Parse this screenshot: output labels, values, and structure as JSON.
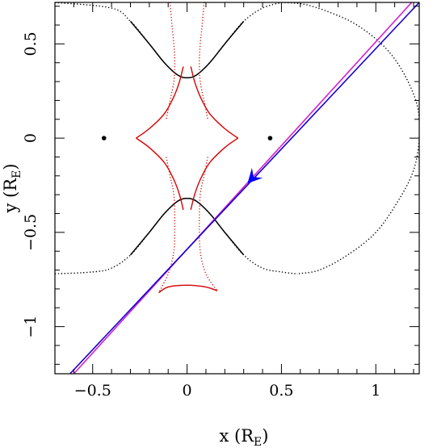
{
  "chart_data": {
    "type": "line",
    "xlabel": {
      "main": "x (R",
      "sub": "E",
      "close": ")"
    },
    "ylabel": {
      "main": "y (R",
      "sub": "E",
      "close": ")"
    },
    "xlim": [
      -0.7,
      1.23
    ],
    "ylim": [
      -1.25,
      0.72
    ],
    "x_ticks": [
      {
        "value": -0.5,
        "label": "−0.5"
      },
      {
        "value": 0,
        "label": "0"
      },
      {
        "value": 0.5,
        "label": "0.5"
      },
      {
        "value": 1,
        "label": "1"
      }
    ],
    "y_ticks": [
      {
        "value": 0.5,
        "label": "0.5"
      },
      {
        "value": 0,
        "label": "0"
      },
      {
        "value": -0.5,
        "label": "−0.5"
      },
      {
        "value": -1,
        "label": "−1"
      }
    ],
    "x_minor_step": 0.1,
    "y_minor_step": 0.1,
    "lens_points": [
      [
        -0.44,
        0.0
      ],
      [
        0.44,
        0.0
      ]
    ],
    "critical_curve_upper": [
      [
        -0.7,
        0.72
      ],
      [
        -0.4,
        0.69
      ],
      [
        -0.3,
        0.62
      ],
      [
        -0.2,
        0.5
      ],
      [
        -0.12,
        0.4
      ],
      [
        -0.05,
        0.335
      ],
      [
        0.0,
        0.32
      ],
      [
        0.05,
        0.335
      ],
      [
        0.12,
        0.4
      ],
      [
        0.2,
        0.5
      ],
      [
        0.3,
        0.62
      ],
      [
        0.4,
        0.69
      ],
      [
        0.5,
        0.72
      ]
    ],
    "critical_curve_upper_right_dotted": [
      [
        0.5,
        0.72
      ],
      [
        0.62,
        0.71
      ],
      [
        0.75,
        0.67
      ],
      [
        0.9,
        0.6
      ],
      [
        1.05,
        0.48
      ],
      [
        1.15,
        0.34
      ],
      [
        1.22,
        0.17
      ],
      [
        1.23,
        0.0
      ],
      [
        1.2,
        -0.17
      ],
      [
        1.12,
        -0.33
      ],
      [
        1.0,
        -0.5
      ],
      [
        0.85,
        -0.62
      ],
      [
        0.7,
        -0.7
      ],
      [
        0.58,
        -0.72
      ]
    ],
    "critical_curve_lower": [
      [
        -0.7,
        -0.72
      ],
      [
        -0.5,
        -0.71
      ],
      [
        -0.4,
        -0.69
      ],
      [
        -0.3,
        -0.62
      ],
      [
        -0.2,
        -0.5
      ],
      [
        -0.12,
        -0.4
      ],
      [
        -0.05,
        -0.335
      ],
      [
        0.0,
        -0.32
      ],
      [
        0.05,
        -0.335
      ],
      [
        0.12,
        -0.4
      ],
      [
        0.2,
        -0.5
      ],
      [
        0.3,
        -0.62
      ],
      [
        0.4,
        -0.69
      ],
      [
        0.5,
        -0.71
      ],
      [
        0.58,
        -0.72
      ]
    ],
    "caustic_central": [
      [
        -0.27,
        0.0
      ],
      [
        -0.2,
        0.05
      ],
      [
        -0.12,
        0.13
      ],
      [
        -0.07,
        0.22
      ],
      [
        -0.04,
        0.3
      ],
      [
        -0.02,
        0.38
      ],
      [
        0.0,
        0.395
      ],
      [
        0.02,
        0.38
      ],
      [
        0.04,
        0.3
      ],
      [
        0.07,
        0.22
      ],
      [
        0.12,
        0.13
      ],
      [
        0.2,
        0.05
      ],
      [
        0.27,
        0.0
      ],
      [
        0.2,
        -0.05
      ],
      [
        0.12,
        -0.13
      ],
      [
        0.07,
        -0.22
      ],
      [
        0.04,
        -0.3
      ],
      [
        0.02,
        -0.38
      ],
      [
        0.0,
        -0.395
      ],
      [
        -0.02,
        -0.38
      ],
      [
        -0.04,
        -0.3
      ],
      [
        -0.07,
        -0.22
      ],
      [
        -0.12,
        -0.13
      ],
      [
        -0.2,
        -0.05
      ],
      [
        -0.27,
        0.0
      ]
    ],
    "caustic_lower_small": [
      [
        -0.15,
        -0.82
      ],
      [
        -0.1,
        -0.79
      ],
      [
        0.0,
        -0.78
      ],
      [
        0.1,
        -0.79
      ],
      [
        0.16,
        -0.81
      ],
      [
        0.13,
        -0.77
      ],
      [
        0.1,
        -0.7
      ],
      [
        0.08,
        -0.6
      ],
      [
        0.07,
        -0.5
      ],
      [
        0.06,
        -0.42
      ],
      [
        0.05,
        -0.36
      ],
      [
        0.02,
        -0.34
      ],
      [
        0.0,
        -0.335
      ],
      [
        -0.02,
        -0.34
      ],
      [
        -0.05,
        -0.36
      ],
      [
        -0.06,
        -0.42
      ],
      [
        -0.07,
        -0.5
      ],
      [
        -0.08,
        -0.6
      ],
      [
        -0.1,
        -0.7
      ],
      [
        -0.12,
        -0.77
      ],
      [
        -0.15,
        -0.82
      ]
    ],
    "caustic_dotted_left": [
      [
        -0.09,
        0.72
      ],
      [
        -0.08,
        0.6
      ],
      [
        -0.07,
        0.5
      ],
      [
        -0.065,
        0.4
      ],
      [
        -0.07,
        0.3
      ],
      [
        -0.09,
        0.2
      ],
      [
        -0.11,
        0.1
      ]
    ],
    "caustic_dotted_right": [
      [
        0.09,
        0.72
      ],
      [
        0.08,
        0.6
      ],
      [
        0.07,
        0.5
      ],
      [
        0.065,
        0.4
      ],
      [
        0.07,
        0.3
      ],
      [
        0.09,
        0.2
      ],
      [
        0.11,
        0.1
      ]
    ],
    "caustic_dotted_lower_left": [
      [
        -0.11,
        -0.1
      ],
      [
        -0.09,
        -0.2
      ],
      [
        -0.07,
        -0.3
      ],
      [
        -0.065,
        -0.45
      ],
      [
        -0.07,
        -0.6
      ],
      [
        -0.1,
        -0.72
      ],
      [
        -0.15,
        -0.82
      ]
    ],
    "caustic_dotted_lower_right": [
      [
        0.11,
        -0.1
      ],
      [
        0.09,
        -0.2
      ],
      [
        0.07,
        -0.3
      ],
      [
        0.065,
        -0.45
      ],
      [
        0.07,
        -0.6
      ],
      [
        0.1,
        -0.72
      ],
      [
        0.16,
        -0.81
      ]
    ],
    "trajectory_magenta": [
      [
        -0.6,
        -1.25
      ],
      [
        1.19,
        0.72
      ]
    ],
    "trajectory_blue": [
      [
        -0.62,
        -1.25
      ],
      [
        1.23,
        0.72
      ]
    ],
    "arrow_position": [
      0.32,
      -0.24
    ],
    "arrow_direction": [
      -0.94,
      -1.0
    ],
    "colors": {
      "critical": "#000000",
      "caustic": "#d40000",
      "trajectory": "#1a00cc",
      "trajectory_alt": "#d020d0",
      "arrow": "#0000ff"
    }
  }
}
